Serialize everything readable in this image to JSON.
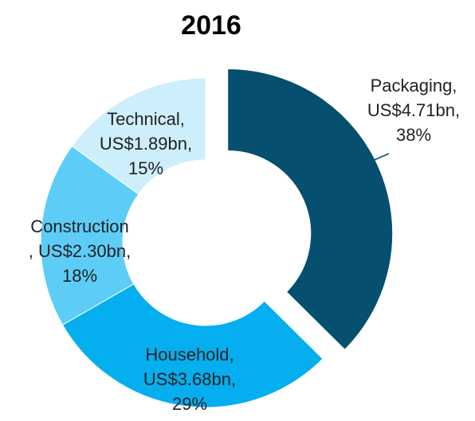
{
  "chart_data": {
    "type": "donut",
    "title": "2016",
    "categories": [
      "Packaging",
      "Household",
      "Construction",
      "Technical"
    ],
    "values": [
      4.71,
      3.68,
      2.3,
      1.89
    ],
    "value_labels": [
      [
        "Packaging,",
        "US$4.71bn,",
        "38%"
      ],
      [
        "Household,",
        "US$3.68bn,",
        "29%"
      ],
      [
        "Construction",
        ", US$2.30bn,",
        "18%"
      ],
      [
        "Technical,",
        "US$1.89bn,",
        "15%"
      ]
    ],
    "colors": [
      "#064f6e",
      "#05aeef",
      "#5dcdf8",
      "#cdeefb"
    ],
    "exploded": "Packaging"
  }
}
